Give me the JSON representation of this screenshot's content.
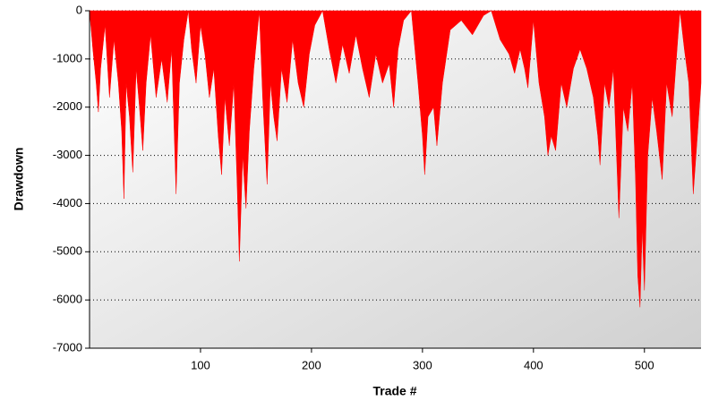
{
  "chart_data": {
    "type": "area",
    "xlabel": "Trade #",
    "ylabel": "Drawdown",
    "color": "#ff0000",
    "grid": true,
    "xlim": [
      0,
      551
    ],
    "ylim": [
      -7000,
      0
    ],
    "xticks": [
      100,
      200,
      300,
      400,
      500
    ],
    "yticks": [
      0,
      -1000,
      -2000,
      -3000,
      -4000,
      -5000,
      -6000,
      -7000
    ],
    "x": [
      0,
      3,
      6,
      8,
      10,
      14,
      18,
      22,
      26,
      29,
      31,
      33,
      36,
      39,
      42,
      45,
      48,
      51,
      55,
      60,
      65,
      70,
      74,
      78,
      81,
      85,
      89,
      92,
      96,
      100,
      104,
      108,
      112,
      116,
      119,
      122,
      126,
      130,
      133,
      135,
      138,
      141,
      144,
      148,
      153,
      156,
      160,
      163,
      166,
      169,
      173,
      178,
      183,
      188,
      193,
      198,
      203,
      210,
      216,
      222,
      228,
      234,
      240,
      246,
      252,
      258,
      264,
      270,
      274,
      278,
      283,
      290,
      296,
      300,
      302,
      305,
      310,
      313,
      318,
      325,
      335,
      345,
      355,
      362,
      370,
      378,
      383,
      388,
      392,
      395,
      400,
      405,
      410,
      413,
      416,
      420,
      425,
      430,
      436,
      442,
      448,
      454,
      458,
      460,
      464,
      468,
      472,
      477,
      481,
      485,
      489,
      492,
      494,
      496,
      498,
      500,
      503,
      507,
      511,
      516,
      520,
      525,
      530,
      532,
      536,
      540,
      544,
      548,
      551
    ],
    "values": [
      0,
      -800,
      -1500,
      -2100,
      -1200,
      -300,
      -1800,
      -600,
      -1500,
      -2500,
      -3900,
      -1500,
      -2200,
      -3350,
      -1200,
      -2000,
      -2900,
      -1500,
      -500,
      -1800,
      -1000,
      -1900,
      -800,
      -3800,
      -1500,
      -600,
      0,
      -800,
      -1500,
      -300,
      -900,
      -1800,
      -1200,
      -2600,
      -3400,
      -1800,
      -2800,
      -1500,
      -3600,
      -5200,
      -3000,
      -4100,
      -2500,
      -1200,
      0,
      -1800,
      -3600,
      -1500,
      -2200,
      -2700,
      -1200,
      -1900,
      -600,
      -1500,
      -2000,
      -900,
      -300,
      0,
      -800,
      -1500,
      -700,
      -1300,
      -500,
      -1200,
      -1800,
      -900,
      -1500,
      -1100,
      -2000,
      -800,
      -200,
      0,
      -1500,
      -2600,
      -3400,
      -2200,
      -2000,
      -2800,
      -1500,
      -400,
      -200,
      -500,
      -100,
      0,
      -600,
      -900,
      -1300,
      -800,
      -1200,
      -1600,
      -200,
      -1500,
      -2200,
      -3000,
      -2600,
      -2900,
      -1500,
      -2000,
      -1200,
      -800,
      -1200,
      -1800,
      -2600,
      -3200,
      -1500,
      -2000,
      -1200,
      -4300,
      -2000,
      -2500,
      -1500,
      -3500,
      -5500,
      -6150,
      -4500,
      -5800,
      -3000,
      -1800,
      -2500,
      -3500,
      -1500,
      -2200,
      -600,
      0,
      -800,
      -1500,
      -3800,
      -2500,
      -1500
    ]
  }
}
